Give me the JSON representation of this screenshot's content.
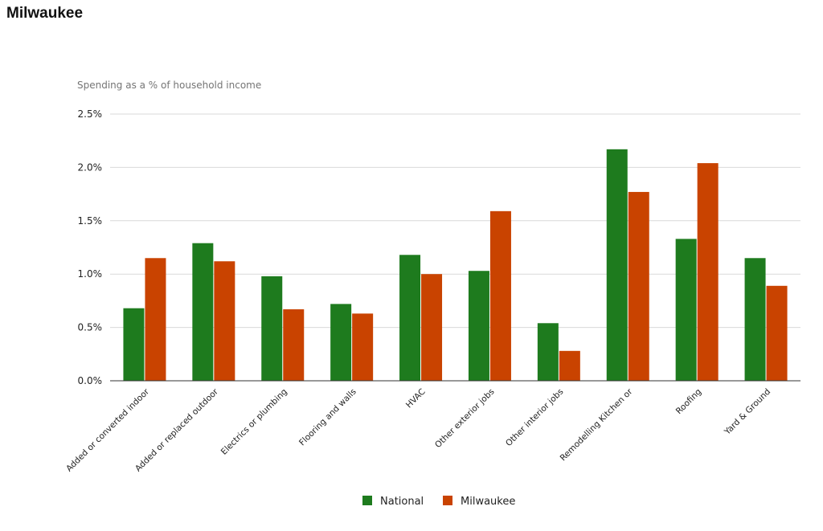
{
  "page": {
    "title": "Milwaukee"
  },
  "chart_data": {
    "type": "bar",
    "title": "",
    "ylabel": "Spending as a % of household income",
    "xlabel": "",
    "ylim": [
      0,
      2.5
    ],
    "yticks": [
      "0.0%",
      "0.5%",
      "1.0%",
      "1.5%",
      "2.0%",
      "2.5%"
    ],
    "ytick_values": [
      0,
      0.5,
      1.0,
      1.5,
      2.0,
      2.5
    ],
    "grid": true,
    "legend_position": "bottom",
    "categories": [
      "Added or converted indoor",
      "Added or replaced outdoor",
      "Electrics or plumbing",
      "Flooring and walls",
      "HVAC",
      "Other exterior jobs",
      "Other interior jobs",
      "Remodelling Kitchen or",
      "Roofing",
      "Yard & Ground"
    ],
    "series": [
      {
        "name": "National",
        "color": "#1e7b1e",
        "values": [
          0.68,
          1.29,
          0.98,
          0.72,
          1.18,
          1.03,
          0.54,
          2.17,
          1.33,
          1.15
        ]
      },
      {
        "name": "Milwaukee",
        "color": "#c94300",
        "values": [
          1.15,
          1.12,
          0.67,
          0.63,
          1.0,
          1.59,
          0.28,
          1.77,
          2.04,
          0.89
        ]
      }
    ]
  }
}
